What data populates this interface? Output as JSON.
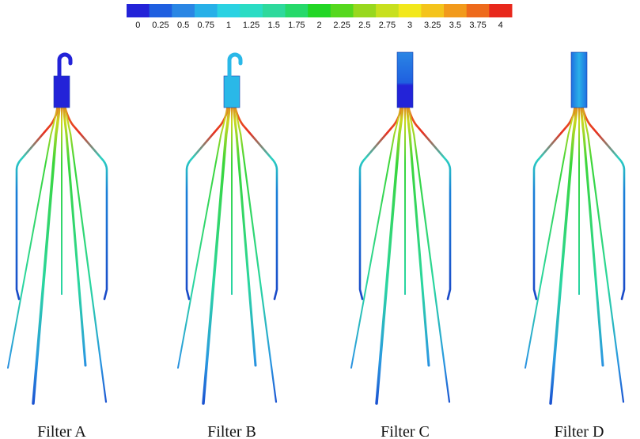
{
  "colorbar": {
    "ticks": [
      "0",
      "0.25",
      "0.5",
      "0.75",
      "1",
      "1.25",
      "1.5",
      "1.75",
      "2",
      "2.25",
      "2.5",
      "2.75",
      "3",
      "3.25",
      "3.5",
      "3.75",
      "4"
    ],
    "colors": [
      "#2323d8",
      "#1f5fe0",
      "#2a86e4",
      "#27b0e8",
      "#2ad2e2",
      "#2adcc4",
      "#2ed99c",
      "#26d96a",
      "#22d626",
      "#56d81e",
      "#98d81e",
      "#c8e01e",
      "#f2e81c",
      "#f4c41c",
      "#f29a1c",
      "#ee6a1c",
      "#e8281c"
    ]
  },
  "filters": [
    {
      "label": "Filter A"
    },
    {
      "label": "Filter B"
    },
    {
      "label": "Filter C"
    },
    {
      "label": "Filter D"
    }
  ]
}
